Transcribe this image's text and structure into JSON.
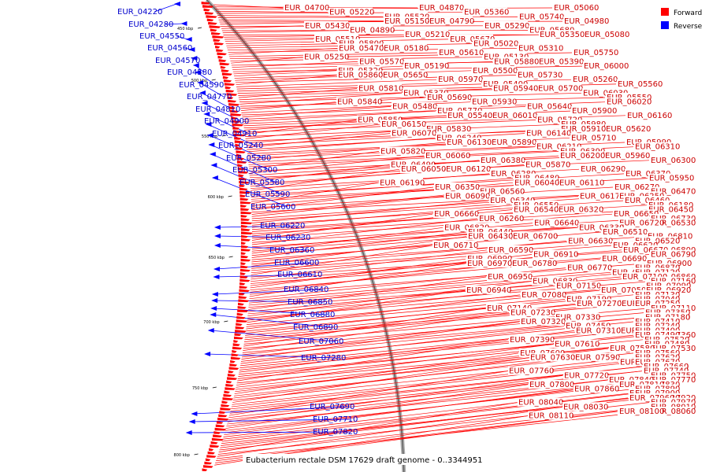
{
  "title": "Eubacterium rectale DSM 17629 draft genome - 0..3344951",
  "legend": {
    "items": [
      {
        "label": "Forward",
        "color": "#ff0000"
      },
      {
        "label": "Reverse",
        "color": "#0000ff"
      }
    ]
  },
  "colors": {
    "forward": "#ff0000",
    "reverse": "#0000ff",
    "backbone": "#888888"
  },
  "ticks": [
    "450 kbp",
    "500 kbp",
    "550 kbp",
    "600 kbp",
    "650 kbp",
    "700 kbp",
    "750 kbp",
    "800 kbp"
  ],
  "reverse_genes": [
    "EUR_04220",
    "EUR_04280",
    "EUR_04550",
    "EUR_04560",
    "EUR_04570",
    "EUR_04580",
    "EUR_04590",
    "EUR_04770",
    "EUR_04810",
    "EUR_04900",
    "EUR_04910",
    "EUR_05240",
    "EUR_05280",
    "EUR_05300",
    "EUR_05580",
    "EUR_05590",
    "EUR_05600",
    "EUR_06220",
    "EUR_06230",
    "EUR_06360",
    "EUR_06600",
    "EUR_06610",
    "EUR_06840",
    "EUR_06850",
    "EUR_06880",
    "EUR_06890",
    "EUR_07060",
    "EUR_07280",
    "EUR_07690",
    "EUR_07710",
    "EUR_07820"
  ],
  "forward_genes": [
    "EUR_04700",
    "EUR_04870",
    "EUR_05060",
    "EUR_05220",
    "EUR_05360",
    "EUR_05520",
    "EUR_05740",
    "EUR_04790",
    "EUR_04980",
    "EUR_05150",
    "EUR_05290",
    "EUR_05430",
    "EUR_05680",
    "EUR_04890",
    "EUR_05080",
    "EUR_05210",
    "EUR_05350",
    "EUR_05510",
    "EUR_05670",
    "EUR_05800",
    "EUR_05020",
    "EUR_05180",
    "EUR_05310",
    "EUR_05470",
    "EUR_05610",
    "EUR_05750",
    "EUR_05130",
    "EUR_05250",
    "EUR_05390",
    "EUR_05570",
    "EUR_05880",
    "EUR_06000",
    "EUR_05190",
    "EUR_05320",
    "EUR_05500",
    "EUR_05650",
    "EUR_05730",
    "EUR_05860",
    "EUR_05970",
    "EUR_05260",
    "EUR_05400",
    "EUR_05560",
    "EUR_05700",
    "EUR_05810",
    "EUR_05940",
    "EUR_06030",
    "EUR_05370",
    "EUR_05550",
    "EUR_05690",
    "EUR_05840",
    "EUR_05930",
    "EUR_06020",
    "EUR_05480",
    "EUR_05640",
    "EUR_05770",
    "EUR_05900",
    "EUR_06010",
    "EUR_06160",
    "EUR_05540",
    "EUR_05720",
    "EUR_05850",
    "EUR_05980",
    "EUR_06150",
    "EUR_05620",
    "EUR_05830",
    "EUR_05910",
    "EUR_06070",
    "EUR_06140",
    "EUR_06240",
    "EUR_05710",
    "EUR_05890",
    "EUR_05990",
    "EUR_06130",
    "EUR_06210",
    "EUR_06310",
    "EUR_06390",
    "EUR_05820",
    "EUR_05960",
    "EUR_06060",
    "EUR_06200",
    "EUR_06300",
    "EUR_06380",
    "EUR_06490",
    "EUR_05870",
    "EUR_06120",
    "EUR_06290",
    "EUR_06050",
    "EUR_06280",
    "EUR_06370",
    "EUR_06480",
    "EUR_05950",
    "EUR_06110",
    "EUR_06190",
    "EUR_06040",
    "EUR_06270",
    "EUR_06350",
    "EUR_06470",
    "EUR_06560",
    "EUR_06090",
    "EUR_06170",
    "EUR_06250",
    "EUR_06340",
    "EUR_06460",
    "EUR_06550",
    "EUR_06180",
    "EUR_06320",
    "EUR_06450",
    "EUR_06540",
    "EUR_06650",
    "EUR_06660",
    "EUR_06730",
    "EUR_06260",
    "EUR_06530",
    "EUR_06640",
    "EUR_06720",
    "EUR_06820",
    "EUR_06330",
    "EUR_06440",
    "EUR_06510",
    "EUR_06700",
    "EUR_06810",
    "EUR_06430",
    "EUR_06630",
    "EUR_06520",
    "EUR_06620",
    "EUR_06710",
    "EUR_06800",
    "EUR_06590",
    "EUR_06670",
    "EUR_06790",
    "EUR_06910",
    "EUR_06990",
    "EUR_06690",
    "EUR_06780",
    "EUR_06900",
    "EUR_06970",
    "EUR_06770",
    "EUR_06870",
    "EUR_06960",
    "EUR_07120",
    "EUR_06860",
    "EUR_06950",
    "EUR_07100",
    "EUR_07160",
    "EUR_06830",
    "EUR_07090",
    "EUR_07150",
    "EUR_06940",
    "EUR_07050",
    "EUR_06920",
    "EUR_07080",
    "EUR_07130",
    "EUR_07190",
    "EUR_07040",
    "EUR_07200",
    "EUR_07250",
    "EUR_07270",
    "EUR_07110",
    "EUR_07140",
    "EUR_07350",
    "EUR_07230",
    "EUR_07260",
    "EUR_07330",
    "EUR_07180",
    "EUR_07320",
    "EUR_07410",
    "EUR_07450",
    "EUR_07240",
    "EUR_07290",
    "EUR_07400",
    "EUR_07310",
    "EUR_07360",
    "EUR_07490",
    "EUR_07520",
    "EUR_07390",
    "EUR_07430",
    "EUR_07610",
    "EUR_07480",
    "EUR_07530",
    "EUR_07580",
    "EUR_07600",
    "EUR_07560",
    "EUR_07590",
    "EUR_07620",
    "EUR_07630",
    "EUR_07680",
    "EUR_07670",
    "EUR_07640",
    "EUR_07660",
    "EUR_07650",
    "EUR_07760",
    "EUR_07740",
    "EUR_07750",
    "EUR_07720",
    "EUR_07770",
    "EUR_07840",
    "EUR_07800",
    "EUR_07830",
    "EUR_07810",
    "EUR_07860",
    "EUR_07890",
    "EUR_07910",
    "EUR_07900",
    "EUR_07920",
    "EUR_07980",
    "EUR_07960",
    "EUR_07970",
    "EUR_08040",
    "EUR_08010",
    "EUR_08030",
    "EUR_08060",
    "EUR_08080",
    "EUR_08100",
    "EUR_08110"
  ]
}
